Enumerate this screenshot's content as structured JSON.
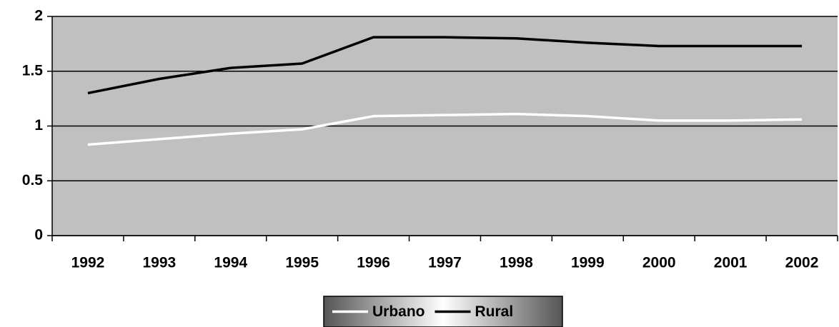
{
  "chart_data": {
    "type": "line",
    "categories": [
      "1992",
      "1993",
      "1994",
      "1995",
      "1996",
      "1997",
      "1998",
      "1999",
      "2000",
      "2001",
      "2002"
    ],
    "series": [
      {
        "name": "Urbano",
        "color": "#ffffff",
        "values": [
          0.83,
          0.88,
          0.93,
          0.97,
          1.09,
          1.1,
          1.11,
          1.09,
          1.05,
          1.05,
          1.06
        ]
      },
      {
        "name": "Rural",
        "color": "#000000",
        "values": [
          1.3,
          1.43,
          1.53,
          1.57,
          1.81,
          1.81,
          1.8,
          1.76,
          1.73,
          1.73,
          1.73
        ]
      }
    ],
    "ylim": [
      0,
      2
    ],
    "yticks": [
      0,
      0.5,
      1,
      1.5,
      2
    ],
    "grid": true,
    "legend": "bottom"
  }
}
